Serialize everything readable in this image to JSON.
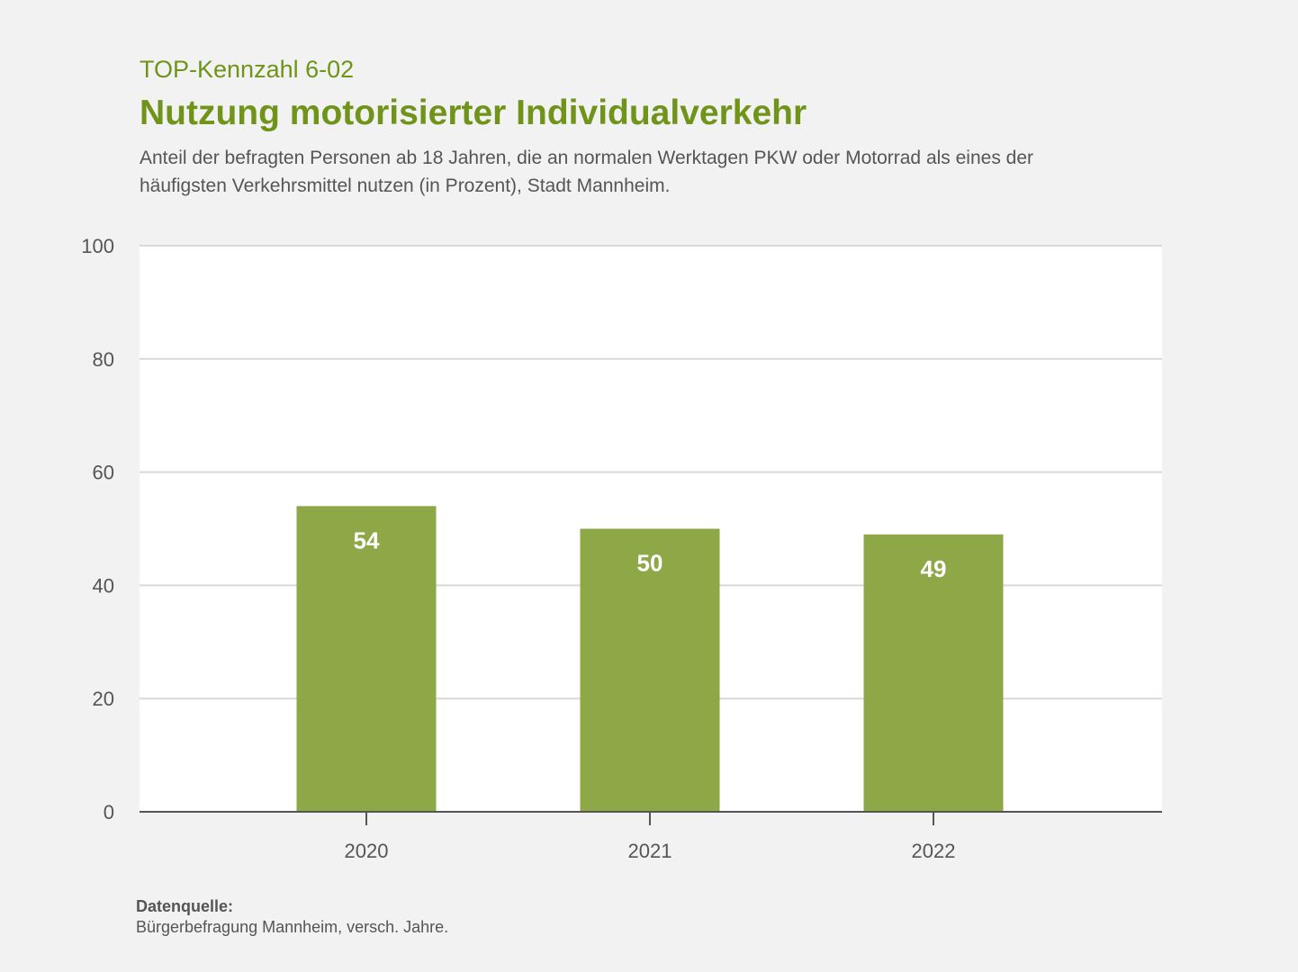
{
  "header": {
    "kicker": "TOP-Kennzahl 6-02",
    "title": "Nutzung motorisierter Individualverkehr",
    "subtitle": "Anteil der befragten Personen ab 18 Jahren, die an normalen Werktagen PKW oder Motorrad als eines der häufigsten Verkehrsmittel nutzen (in Prozent), Stadt Mannheim."
  },
  "chart_data": {
    "type": "bar",
    "title": "Nutzung motorisierter Individualverkehr",
    "categories": [
      "2020",
      "2021",
      "2022"
    ],
    "values": [
      54,
      50,
      49
    ],
    "data_labels": [
      "54",
      "50",
      "49"
    ],
    "xlabel": "",
    "ylabel": "",
    "ylim": [
      0,
      100
    ],
    "yticks": [
      0,
      20,
      40,
      60,
      80,
      100
    ],
    "grid": true,
    "legend": "none"
  },
  "colors": {
    "bar": "#8ea847",
    "accent": "#6f9419",
    "grid": "#d9d9d9",
    "axis": "#555555",
    "plot_background": "#ffffff",
    "page_background": "#f2f2f2"
  },
  "source": {
    "label": "Datenquelle:",
    "text": "Bürgerbefragung Mannheim, versch. Jahre."
  }
}
